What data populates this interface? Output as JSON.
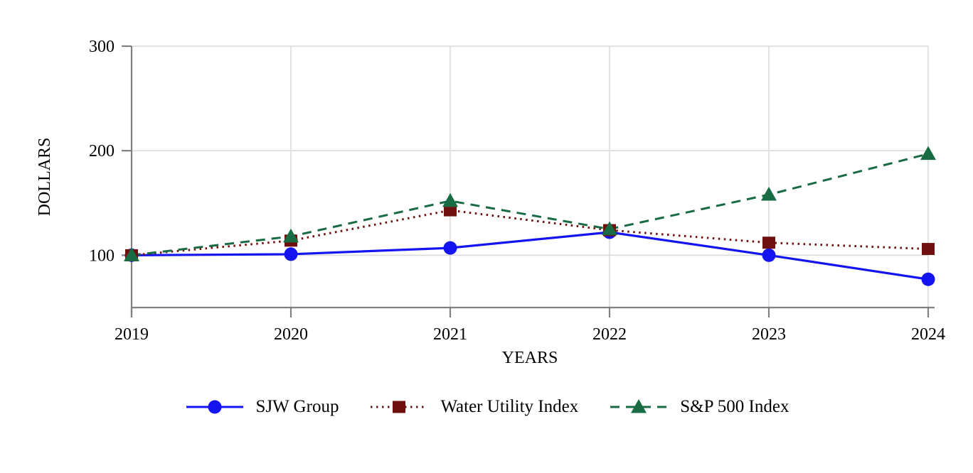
{
  "chart_data": {
    "type": "line",
    "title": "",
    "xlabel": "YEARS",
    "ylabel": "DOLLARS",
    "x": [
      "2019",
      "2020",
      "2021",
      "2022",
      "2023",
      "2024"
    ],
    "ylim": [
      50,
      300
    ],
    "yticks": [
      100,
      200,
      300
    ],
    "grid": true,
    "legend_position": "bottom-center",
    "series": [
      {
        "name": "SJW Group",
        "color": "#1414f0",
        "line_style": "solid",
        "marker": "circle",
        "values": [
          100,
          101,
          107,
          122,
          100,
          77
        ]
      },
      {
        "name": "Water Utility Index",
        "color": "#6e1010",
        "line_style": "dotted",
        "marker": "square",
        "values": [
          100,
          114,
          143,
          124,
          112,
          106
        ]
      },
      {
        "name": "S&P 500 Index",
        "color": "#186b43",
        "line_style": "dashed",
        "marker": "triangle",
        "values": [
          100,
          118,
          152,
          125,
          158,
          197
        ]
      }
    ]
  },
  "style": {
    "background": "#ffffff",
    "axis_color": "#808080",
    "grid_color": "#d9d9d9",
    "text_color": "#000000"
  }
}
